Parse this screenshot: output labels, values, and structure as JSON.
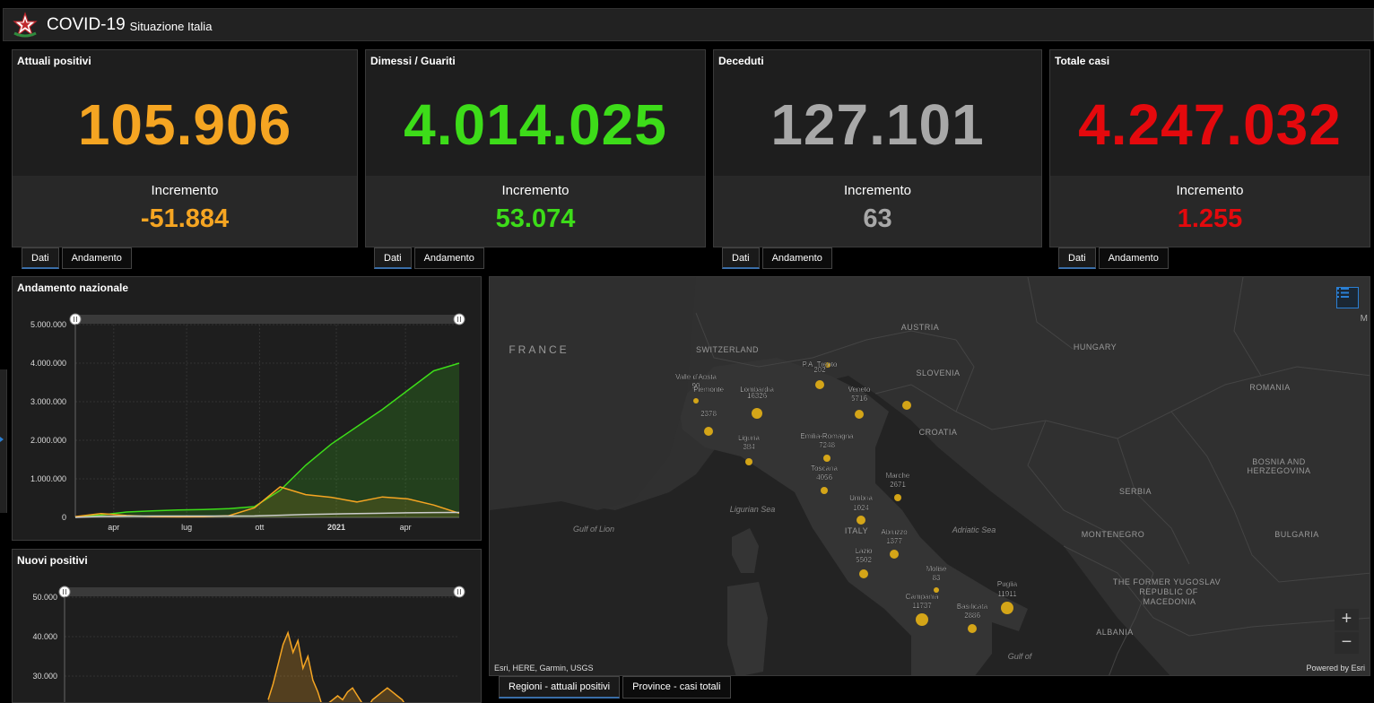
{
  "header": {
    "title": "COVID-19",
    "subtitle": "Situazione Italia",
    "logo": "italian-republic-star-icon"
  },
  "colors": {
    "orange": "#f5a522",
    "green": "#3ddc19",
    "gray": "#a8a8a8",
    "red": "#e4090d"
  },
  "cards": [
    {
      "title": "Attuali positivi",
      "value": "105.906",
      "increment_label": "Incremento",
      "increment": "-51.884",
      "color": "#f5a522"
    },
    {
      "title": "Dimessi / Guariti",
      "value": "4.014.025",
      "increment_label": "Incremento",
      "increment": "53.074",
      "color": "#3ddc19"
    },
    {
      "title": "Deceduti",
      "value": "127.101",
      "increment_label": "Incremento",
      "increment": "63",
      "color": "#a8a8a8"
    },
    {
      "title": "Totale casi",
      "value": "4.247.032",
      "increment_label": "Incremento",
      "increment": "1.255",
      "color": "#e4090d"
    }
  ],
  "card_tabs": {
    "dati": "Dati",
    "andamento": "Andamento"
  },
  "panels": {
    "andamento": "Andamento nazionale",
    "nuovi": "Nuovi positivi"
  },
  "chart_data": [
    {
      "type": "area",
      "title": "Andamento nazionale",
      "x_ticks": [
        "apr",
        "lug",
        "ott",
        "2021",
        "apr"
      ],
      "y_ticks": [
        "5.000.000",
        "4.000.000",
        "3.000.000",
        "2.000.000",
        "1.000.000",
        "0"
      ],
      "ylim": [
        0,
        5000000
      ],
      "x": [
        "2020-03",
        "2020-04",
        "2020-05",
        "2020-06",
        "2020-07",
        "2020-08",
        "2020-09",
        "2020-10",
        "2020-11",
        "2020-12",
        "2021-01",
        "2021-02",
        "2021-03",
        "2021-04",
        "2021-05",
        "2021-06"
      ],
      "series": [
        {
          "color": "#3ddc19",
          "values": [
            3000,
            60000,
            140000,
            170000,
            190000,
            205000,
            225000,
            280000,
            700000,
            1350000,
            1900000,
            2350000,
            2800000,
            3300000,
            3800000,
            4000000
          ]
        },
        {
          "color": "#f5a522",
          "values": [
            20000,
            100000,
            50000,
            20000,
            13000,
            17000,
            45000,
            250000,
            790000,
            590000,
            520000,
            400000,
            530000,
            480000,
            320000,
            106000
          ]
        },
        {
          "color": "#cccccc",
          "values": [
            1000,
            25000,
            32000,
            34000,
            35000,
            35500,
            36000,
            38000,
            55000,
            75000,
            88000,
            97000,
            108000,
            118000,
            125000,
            127000
          ]
        }
      ]
    },
    {
      "type": "bar",
      "title": "Nuovi positivi",
      "y_ticks": [
        "50.000",
        "40.000",
        "30.000"
      ],
      "ylim": [
        20000,
        55000
      ],
      "series": [
        {
          "color": "#f5a522",
          "values": [
            24000,
            28000,
            33000,
            38000,
            41000,
            36000,
            39000,
            32000,
            35000,
            29000,
            26000,
            22000,
            23000,
            24000,
            25000,
            24000,
            26000,
            27000,
            25000,
            23000,
            22000,
            24000,
            25000,
            26000,
            27000,
            26000,
            25000,
            24000,
            22000
          ]
        }
      ]
    }
  ],
  "map": {
    "countries": [
      {
        "label": "FRANCE"
      },
      {
        "label": "SWITZERLAND"
      },
      {
        "label": "AUSTRIA"
      },
      {
        "label": "HUNGARY"
      },
      {
        "label": "SLOVENIA"
      },
      {
        "label": "CROATIA"
      },
      {
        "label": "ROMANIA"
      },
      {
        "label": "BOSNIA AND"
      },
      {
        "label": "HERZEGOVINA"
      },
      {
        "label": "SERBIA"
      },
      {
        "label": "MONTENEGRO"
      },
      {
        "label": "BULGARIA"
      },
      {
        "label": "THE FORMER YUGOSLAV"
      },
      {
        "label": "REPUBLIC OF"
      },
      {
        "label": "MACEDONIA"
      },
      {
        "label": "ALBANIA"
      },
      {
        "label": "ITALY"
      }
    ],
    "seas": [
      {
        "label": "Gulf of Lion"
      },
      {
        "label": "Ligurian Sea"
      },
      {
        "label": "Adriatic Sea"
      },
      {
        "label": "Gulf of"
      }
    ],
    "regions": [
      {
        "name": "Valle d'Aosta",
        "value": "90"
      },
      {
        "name": "Piemonte",
        "value": "2378"
      },
      {
        "name": "Lombardia",
        "value": "16326"
      },
      {
        "name": "P.A. Trento",
        "value": "202"
      },
      {
        "name": "Veneto",
        "value": "5716"
      },
      {
        "name": "Liguria",
        "value": "384"
      },
      {
        "name": "Emilia-Romagna",
        "value": "7248"
      },
      {
        "name": "Toscana",
        "value": "4056"
      },
      {
        "name": "Marche",
        "value": "2671"
      },
      {
        "name": "Umbria",
        "value": "1024"
      },
      {
        "name": "Abruzzo",
        "value": "1377"
      },
      {
        "name": "Lazio",
        "value": "5502"
      },
      {
        "name": "Molise",
        "value": "83"
      },
      {
        "name": "Campania",
        "value": "11737"
      },
      {
        "name": "Basilicata",
        "value": "2886"
      },
      {
        "name": "Puglia",
        "value": "11911"
      }
    ],
    "attribution": "Esri, HERE, Garmin, USGS",
    "powered": "Powered by Esri",
    "corner_letter": "M",
    "zoom_in": "+",
    "zoom_out": "−"
  },
  "map_tabs": {
    "regioni": "Regioni - attuali positivi",
    "province": "Province - casi totali"
  }
}
